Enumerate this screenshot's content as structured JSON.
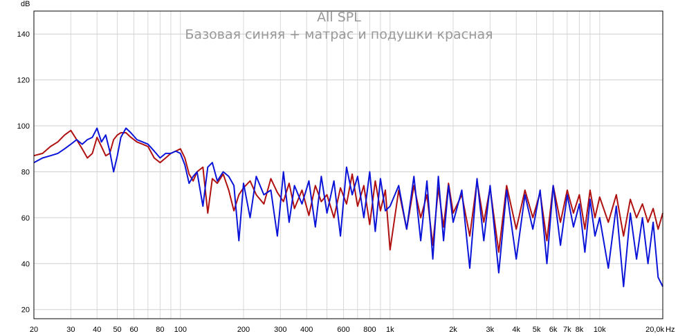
{
  "chart_data": {
    "type": "line",
    "title": "All SPL",
    "subtitle": "Базовая синяя + матрас и подушки красная",
    "xlabel": "Hz",
    "ylabel": "dB",
    "x_scale": "log",
    "xlim": [
      20,
      20000
    ],
    "ylim": [
      16,
      150
    ],
    "grid": true,
    "x_ticks": [
      {
        "value": 20,
        "label": "20"
      },
      {
        "value": 30,
        "label": "30"
      },
      {
        "value": 40,
        "label": "40"
      },
      {
        "value": 50,
        "label": "50"
      },
      {
        "value": 60,
        "label": "60"
      },
      {
        "value": 80,
        "label": "80"
      },
      {
        "value": 100,
        "label": "100"
      },
      {
        "value": 200,
        "label": "200"
      },
      {
        "value": 300,
        "label": "300"
      },
      {
        "value": 400,
        "label": "400"
      },
      {
        "value": 600,
        "label": "600"
      },
      {
        "value": 800,
        "label": "800"
      },
      {
        "value": 1000,
        "label": "1k"
      },
      {
        "value": 2000,
        "label": "2k"
      },
      {
        "value": 3000,
        "label": "3k"
      },
      {
        "value": 4000,
        "label": "4k"
      },
      {
        "value": 5000,
        "label": "5k"
      },
      {
        "value": 6000,
        "label": "6k"
      },
      {
        "value": 7000,
        "label": "7k"
      },
      {
        "value": 8000,
        "label": "8k"
      },
      {
        "value": 10000,
        "label": "10k"
      },
      {
        "value": 20000,
        "label": "20,0k"
      }
    ],
    "y_ticks": [
      {
        "value": 20,
        "label": "20"
      },
      {
        "value": 40,
        "label": "40"
      },
      {
        "value": 60,
        "label": "60"
      },
      {
        "value": 80,
        "label": "80"
      },
      {
        "value": 100,
        "label": "100"
      },
      {
        "value": 120,
        "label": "120"
      },
      {
        "value": 140,
        "label": "140"
      }
    ],
    "x_minor_grid": [
      20,
      30,
      40,
      50,
      60,
      70,
      80,
      90,
      100,
      200,
      300,
      400,
      500,
      600,
      700,
      800,
      900,
      1000,
      2000,
      3000,
      4000,
      5000,
      6000,
      7000,
      8000,
      9000,
      10000,
      20000
    ],
    "series": [
      {
        "color": "#b01010",
        "x": [
          20,
          22,
          24,
          26,
          28,
          30,
          32,
          34,
          36,
          38,
          40,
          42,
          44,
          46,
          48,
          50,
          52,
          55,
          58,
          62,
          66,
          70,
          75,
          80,
          85,
          90,
          95,
          100,
          105,
          110,
          115,
          120,
          128,
          135,
          142,
          150,
          160,
          170,
          180,
          190,
          200,
          215,
          230,
          250,
          270,
          290,
          310,
          330,
          350,
          380,
          410,
          440,
          470,
          500,
          540,
          580,
          620,
          660,
          700,
          750,
          800,
          850,
          900,
          950,
          1000,
          1100,
          1200,
          1300,
          1400,
          1500,
          1600,
          1700,
          1800,
          1900,
          2000,
          2200,
          2400,
          2600,
          2800,
          3000,
          3300,
          3600,
          4000,
          4400,
          4800,
          5200,
          5600,
          6000,
          6500,
          7000,
          7500,
          8000,
          8500,
          9000,
          9500,
          10000,
          11000,
          12000,
          13000,
          14000,
          15000,
          16000,
          17000,
          18000,
          19000,
          20000
        ],
        "y": [
          87,
          88,
          91,
          93,
          96,
          98,
          94,
          90,
          86,
          88,
          95,
          91,
          87,
          88,
          94,
          96,
          97,
          97,
          95,
          93,
          92,
          91,
          86,
          84,
          86,
          88,
          89,
          90,
          86,
          79,
          76,
          80,
          82,
          62,
          77,
          75,
          79,
          72,
          63,
          70,
          73,
          76,
          70,
          66,
          77,
          71,
          67,
          75,
          64,
          72,
          61,
          74,
          67,
          70,
          60,
          73,
          66,
          79,
          65,
          74,
          57,
          76,
          63,
          72,
          46,
          72,
          55,
          74,
          60,
          70,
          48,
          73,
          56,
          75,
          62,
          70,
          52,
          76,
          58,
          73,
          45,
          74,
          55,
          72,
          60,
          71,
          50,
          74,
          58,
          72,
          62,
          70,
          55,
          72,
          60,
          69,
          58,
          70,
          52,
          68,
          60,
          66,
          58,
          64,
          55,
          62
        ]
      },
      {
        "color": "#0a14d8",
        "x": [
          20,
          22,
          24,
          26,
          28,
          30,
          32,
          34,
          36,
          38,
          40,
          42,
          44,
          46,
          48,
          50,
          52,
          55,
          58,
          62,
          66,
          70,
          75,
          80,
          85,
          90,
          95,
          100,
          105,
          110,
          115,
          120,
          128,
          135,
          142,
          150,
          160,
          170,
          180,
          190,
          200,
          215,
          230,
          250,
          270,
          290,
          310,
          330,
          350,
          380,
          410,
          440,
          470,
          500,
          540,
          580,
          620,
          660,
          700,
          750,
          800,
          850,
          900,
          950,
          1000,
          1100,
          1200,
          1300,
          1400,
          1500,
          1600,
          1700,
          1800,
          1900,
          2000,
          2200,
          2400,
          2600,
          2800,
          3000,
          3300,
          3600,
          4000,
          4400,
          4800,
          5200,
          5600,
          6000,
          6500,
          7000,
          7500,
          8000,
          8500,
          9000,
          9500,
          10000,
          11000,
          12000,
          13000,
          14000,
          15000,
          16000,
          17000,
          18000,
          19000,
          20000
        ],
        "y": [
          84,
          86,
          87,
          88,
          90,
          92,
          94,
          92,
          94,
          95,
          99,
          93,
          96,
          89,
          80,
          87,
          95,
          99,
          97,
          94,
          93,
          92,
          89,
          86,
          88,
          88,
          89,
          88,
          83,
          75,
          78,
          80,
          65,
          82,
          84,
          76,
          80,
          78,
          74,
          50,
          75,
          60,
          78,
          70,
          72,
          52,
          80,
          58,
          74,
          66,
          76,
          56,
          78,
          62,
          76,
          52,
          82,
          70,
          78,
          60,
          80,
          54,
          77,
          63,
          65,
          74,
          55,
          78,
          50,
          76,
          42,
          78,
          50,
          74,
          58,
          72,
          38,
          77,
          50,
          74,
          36,
          72,
          42,
          70,
          55,
          72,
          40,
          74,
          48,
          70,
          56,
          66,
          45,
          68,
          52,
          60,
          38,
          65,
          30,
          62,
          42,
          60,
          40,
          58,
          34,
          30
        ]
      }
    ]
  }
}
